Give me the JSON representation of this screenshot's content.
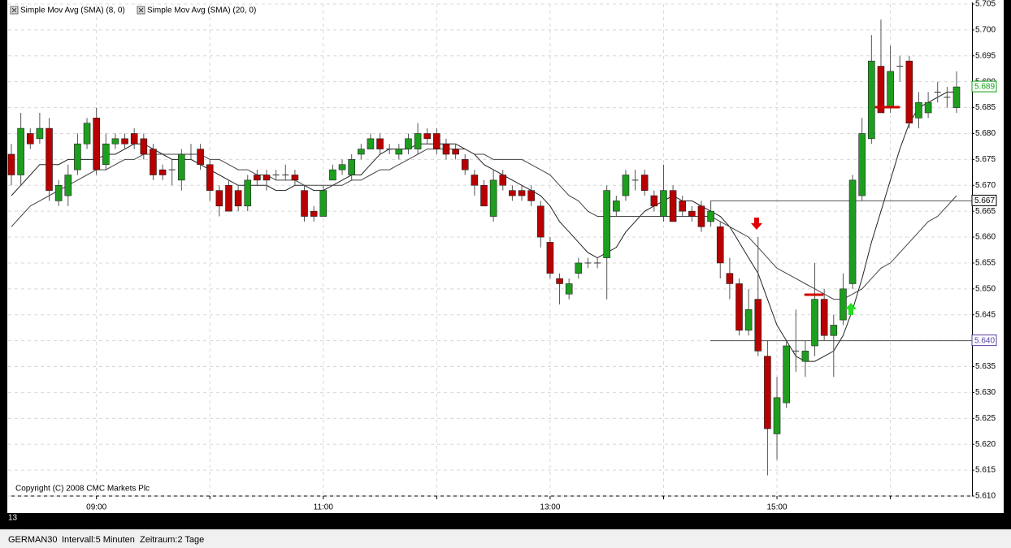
{
  "chart_data": {
    "type": "candlestick",
    "series": [
      {
        "name": "Simple Mov Avg (SMA) (8, 0)",
        "color": "#222222",
        "values": [
          5.668,
          5.67,
          5.672,
          5.674,
          5.674,
          5.674,
          5.675,
          5.675,
          5.675,
          5.675,
          5.676,
          5.676,
          5.677,
          5.678,
          5.678,
          5.677,
          5.676,
          5.675,
          5.675,
          5.675,
          5.674,
          5.673,
          5.672,
          5.671,
          5.67,
          5.67,
          5.67,
          5.67,
          5.669,
          5.669,
          5.67,
          5.67,
          5.669,
          5.669,
          5.67,
          5.671,
          5.672,
          5.672,
          5.674,
          5.676,
          5.677,
          5.677,
          5.677,
          5.678,
          5.678,
          5.678,
          5.678,
          5.678,
          5.677,
          5.676,
          5.674,
          5.673,
          5.672,
          5.671,
          5.67,
          5.669,
          5.668,
          5.666,
          5.663,
          5.661,
          5.659,
          5.657,
          5.656,
          5.657,
          5.658,
          5.661,
          5.663,
          5.665,
          5.666,
          5.667,
          5.668,
          5.667,
          5.667,
          5.666,
          5.665,
          5.664,
          5.662,
          5.659,
          5.656,
          5.653,
          5.648,
          5.643,
          5.64,
          5.637,
          5.636,
          5.636,
          5.637,
          5.638,
          5.641,
          5.646,
          5.652,
          5.659,
          5.665,
          5.671,
          5.677,
          5.682,
          5.685,
          5.686,
          5.687,
          5.688,
          5.688
        ]
      },
      {
        "name": "Simple Mov Avg (SMA) (20, 0)",
        "color": "#444444",
        "values": [
          5.662,
          5.664,
          5.666,
          5.667,
          5.668,
          5.669,
          5.67,
          5.671,
          5.672,
          5.673,
          5.673,
          5.674,
          5.675,
          5.675,
          5.676,
          5.676,
          5.676,
          5.676,
          5.676,
          5.676,
          5.676,
          5.675,
          5.675,
          5.674,
          5.673,
          5.673,
          5.672,
          5.672,
          5.671,
          5.671,
          5.671,
          5.67,
          5.67,
          5.67,
          5.67,
          5.67,
          5.671,
          5.671,
          5.672,
          5.673,
          5.673,
          5.674,
          5.675,
          5.676,
          5.677,
          5.677,
          5.677,
          5.677,
          5.677,
          5.676,
          5.676,
          5.675,
          5.675,
          5.675,
          5.675,
          5.674,
          5.673,
          5.672,
          5.67,
          5.668,
          5.667,
          5.665,
          5.664,
          5.664,
          5.664,
          5.664,
          5.664,
          5.664,
          5.664,
          5.664,
          5.664,
          5.664,
          5.664,
          5.664,
          5.664,
          5.663,
          5.662,
          5.661,
          5.66,
          5.658,
          5.656,
          5.654,
          5.653,
          5.652,
          5.651,
          5.65,
          5.649,
          5.648,
          5.648,
          5.649,
          5.65,
          5.652,
          5.654,
          5.655,
          5.657,
          5.659,
          5.661,
          5.663,
          5.664,
          5.666,
          5.668
        ]
      }
    ],
    "categories": [
      null,
      null,
      null,
      null,
      null,
      null,
      null,
      null,
      null,
      "09:00",
      null,
      null,
      null,
      null,
      null,
      null,
      null,
      null,
      null,
      null,
      null,
      null,
      null,
      null,
      null,
      null,
      null,
      null,
      null,
      null,
      null,
      null,
      null,
      "11:00",
      null,
      null,
      null,
      null,
      null,
      null,
      null,
      null,
      null,
      null,
      null,
      null,
      null,
      null,
      null,
      null,
      null,
      null,
      null,
      null,
      null,
      null,
      null,
      "13:00",
      null,
      null,
      null,
      null,
      null,
      null,
      null,
      null,
      null,
      null,
      null,
      null,
      null,
      null,
      null,
      null,
      null,
      null,
      null,
      null,
      null,
      null,
      null,
      "15:00",
      null,
      null,
      null,
      null,
      null,
      null,
      null,
      null,
      null,
      null,
      null,
      null,
      null,
      null,
      null,
      null,
      null,
      null,
      null
    ],
    "open": [
      5.676,
      5.672,
      5.68,
      5.679,
      5.681,
      5.667,
      5.668,
      5.673,
      5.678,
      5.683,
      5.674,
      5.678,
      5.679,
      5.68,
      5.679,
      5.677,
      5.673,
      5.673,
      5.671,
      5.676,
      5.677,
      5.674,
      5.669,
      5.67,
      5.669,
      5.666,
      5.672,
      5.672,
      5.672,
      5.672,
      5.672,
      5.669,
      5.665,
      5.664,
      5.671,
      5.673,
      5.672,
      5.676,
      5.677,
      5.679,
      5.677,
      5.676,
      5.677,
      5.677,
      5.68,
      5.68,
      5.678,
      5.677,
      5.675,
      5.672,
      5.67,
      5.664,
      5.672,
      5.669,
      5.669,
      5.669,
      5.666,
      5.659,
      5.652,
      5.649,
      5.653,
      5.655,
      5.655,
      5.656,
      5.665,
      5.668,
      5.671,
      5.672,
      5.668,
      5.664,
      5.669,
      5.667,
      5.665,
      5.666,
      5.663,
      5.662,
      5.653,
      5.651,
      5.642,
      5.648,
      5.637,
      5.622,
      5.628,
      5.638,
      5.636,
      5.639,
      5.648,
      5.641,
      5.644,
      5.651,
      5.668,
      5.679,
      5.693,
      5.685,
      5.693,
      5.694,
      5.683,
      5.684,
      5.688,
      5.687,
      5.685
    ],
    "high": [
      5.678,
      5.684,
      5.681,
      5.684,
      5.683,
      5.671,
      5.674,
      5.68,
      5.683,
      5.685,
      5.68,
      5.68,
      5.68,
      5.681,
      5.68,
      5.678,
      5.674,
      5.675,
      5.677,
      5.678,
      5.678,
      5.675,
      5.67,
      5.671,
      5.67,
      5.672,
      5.673,
      5.673,
      5.673,
      5.674,
      5.673,
      5.67,
      5.666,
      5.67,
      5.674,
      5.675,
      5.676,
      5.678,
      5.68,
      5.68,
      5.678,
      5.678,
      5.68,
      5.682,
      5.681,
      5.681,
      5.679,
      5.678,
      5.676,
      5.673,
      5.671,
      5.673,
      5.673,
      5.67,
      5.67,
      5.67,
      5.667,
      5.66,
      5.653,
      5.652,
      5.656,
      5.656,
      5.656,
      5.67,
      5.668,
      5.673,
      5.673,
      5.673,
      5.669,
      5.674,
      5.67,
      5.668,
      5.666,
      5.667,
      5.667,
      5.663,
      5.656,
      5.652,
      5.65,
      5.66,
      5.64,
      5.633,
      5.64,
      5.646,
      5.64,
      5.655,
      5.65,
      5.645,
      5.653,
      5.672,
      5.683,
      5.699,
      5.702,
      5.697,
      5.695,
      5.695,
      5.688,
      5.688,
      5.69,
      5.689,
      5.692
    ],
    "low": [
      5.67,
      5.67,
      5.677,
      5.678,
      5.667,
      5.666,
      5.666,
      5.672,
      5.677,
      5.672,
      5.673,
      5.677,
      5.677,
      5.677,
      5.675,
      5.671,
      5.671,
      5.67,
      5.669,
      5.675,
      5.673,
      5.667,
      5.664,
      5.665,
      5.665,
      5.665,
      5.67,
      5.669,
      5.671,
      5.671,
      5.67,
      5.663,
      5.663,
      5.664,
      5.671,
      5.672,
      5.671,
      5.675,
      5.677,
      5.676,
      5.676,
      5.675,
      5.676,
      5.676,
      5.678,
      5.676,
      5.675,
      5.675,
      5.672,
      5.668,
      5.666,
      5.663,
      5.669,
      5.667,
      5.667,
      5.666,
      5.658,
      5.652,
      5.647,
      5.648,
      5.652,
      5.654,
      5.654,
      5.648,
      5.664,
      5.667,
      5.669,
      5.668,
      5.665,
      5.663,
      5.663,
      5.664,
      5.663,
      5.661,
      5.662,
      5.652,
      5.648,
      5.641,
      5.641,
      5.637,
      5.614,
      5.617,
      5.627,
      5.634,
      5.633,
      5.637,
      5.64,
      5.633,
      5.643,
      5.65,
      5.667,
      5.678,
      5.684,
      5.684,
      5.69,
      5.681,
      5.681,
      5.683,
      5.686,
      5.685,
      5.684
    ],
    "close": [
      5.672,
      5.681,
      5.678,
      5.681,
      5.669,
      5.67,
      5.672,
      5.678,
      5.682,
      5.673,
      5.678,
      5.679,
      5.678,
      5.678,
      5.676,
      5.672,
      5.672,
      5.673,
      5.676,
      5.676,
      5.674,
      5.669,
      5.666,
      5.665,
      5.666,
      5.671,
      5.671,
      5.671,
      5.672,
      5.672,
      5.671,
      5.664,
      5.664,
      5.669,
      5.673,
      5.674,
      5.675,
      5.677,
      5.679,
      5.677,
      5.677,
      5.677,
      5.679,
      5.68,
      5.679,
      5.677,
      5.676,
      5.676,
      5.673,
      5.67,
      5.666,
      5.671,
      5.67,
      5.668,
      5.668,
      5.667,
      5.66,
      5.653,
      5.651,
      5.651,
      5.655,
      5.655,
      5.655,
      5.669,
      5.667,
      5.672,
      5.671,
      5.669,
      5.666,
      5.669,
      5.663,
      5.665,
      5.664,
      5.662,
      5.665,
      5.655,
      5.651,
      5.642,
      5.646,
      5.638,
      5.623,
      5.629,
      5.639,
      5.638,
      5.638,
      5.648,
      5.641,
      5.643,
      5.65,
      5.671,
      5.68,
      5.694,
      5.684,
      5.692,
      5.693,
      5.682,
      5.686,
      5.686,
      5.688,
      5.687,
      5.689
    ],
    "up_color": "#1e9e1e",
    "down_color": "#b80000",
    "ylim": [
      5.61,
      5.705
    ],
    "yticks": [
      5.705,
      {
        "value": 5.7,
        "label": "5.700"
      },
      5.695,
      {
        "value": 5.69,
        "label": "5.690"
      },
      5.685,
      {
        "value": 5.68,
        "label": "5.680"
      },
      5.675,
      {
        "value": 5.67,
        "label": "5.670"
      },
      5.665,
      {
        "value": 5.66,
        "label": "5.660"
      },
      5.655,
      {
        "value": 5.65,
        "label": "5.650"
      },
      5.645,
      {
        "value": 5.64,
        "label": "5.640"
      },
      5.635,
      {
        "value": 5.63,
        "label": "5.630"
      },
      5.625,
      {
        "value": 5.62,
        "label": "5.620"
      },
      5.615,
      {
        "value": 5.61,
        "label": "5.610"
      }
    ],
    "grid": true,
    "levels": [
      5.667,
      {
        "value": 5.64,
        "label": "5.640"
      }
    ],
    "level_colors": [
      "#000000",
      "#5a3fa0"
    ],
    "last_color": "#10a010",
    "copyright": "Copyright (C) 2008 CMC Markets Plc",
    "corner_label": "13",
    "footer": {
      "symbol": "GERMAN30",
      "interval": "Intervall:5 Minuten",
      "period": "Zeitraum:2 Tage"
    }
  }
}
